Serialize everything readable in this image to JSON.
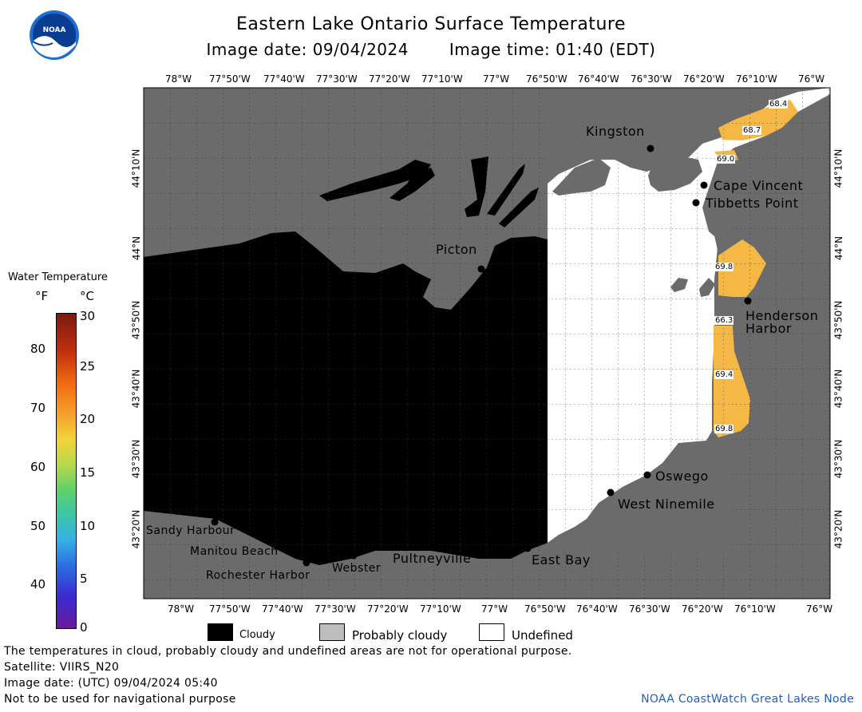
{
  "header": {
    "title": "Eastern Lake Ontario Surface Temperature",
    "image_date": "Image date: 09/04/2024",
    "image_time": "Image time: 01:40 (EDT)"
  },
  "logo": {
    "text": "NOAA"
  },
  "map": {
    "top_lon_labels": [
      "78°W",
      "77°50'W",
      "77°40'W",
      "77°30'W",
      "77°20'W",
      "77°10'W",
      "77°W",
      "76°50'W",
      "76°40'W",
      "76°30'W",
      "76°20'W",
      "76°10'W",
      "76°W"
    ],
    "bottom_lon_labels": [
      "78°W",
      "77°50'W",
      "77°40'W",
      "77°30'W",
      "77°20'W",
      "77°10'W",
      "77°W",
      "76°50'W",
      "76°40'W",
      "76°30'W",
      "76°20'W",
      "76°10'W",
      "76°W"
    ],
    "lat_labels": [
      "44°10'N",
      "44°N",
      "43°50'N",
      "43°40'N",
      "43°30'N",
      "43°20'N"
    ],
    "places": {
      "kingston": "Kingston",
      "cape_vincent": "Cape Vincent",
      "tibbetts_point": "Tibbetts Point",
      "picton": "Picton",
      "henderson_harbor_1": "Henderson",
      "henderson_harbor_2": "Harbor",
      "oswego": "Oswego",
      "west_ninemile": "West Ninemile",
      "east_bay": "East Bay",
      "pultneyville": "Pultneyville",
      "webster": "Webster",
      "rochester_harbor": "Rochester Harbor",
      "manitou_beach": "Manitou Beach",
      "sandy_harbour": "Sandy Harbour"
    },
    "temp_labels": [
      "68.4",
      "68.7",
      "69.0",
      "69.8",
      "66.3",
      "69.4",
      "69.8"
    ]
  },
  "scale": {
    "title": "Water Temperature",
    "unit_f": "°F",
    "unit_c": "°C",
    "f_ticks": [
      "80",
      "70",
      "60",
      "50",
      "40"
    ],
    "c_ticks": [
      "30",
      "25",
      "20",
      "15",
      "10",
      "5",
      "0"
    ]
  },
  "legend": {
    "cloudy": "Cloudy",
    "probably_cloudy": "Probably cloudy",
    "undefined": "Undefined"
  },
  "footer": {
    "disclaimer": "The temperatures in cloud, probably cloudy and undefined areas are not for operational purpose.",
    "satellite": "Satellite: VIIRS_N20",
    "utc_date": "Image date: (UTC) 09/04/2024  05:40",
    "navigation": "Not to be used for navigational purpose",
    "credit": "NOAA CoastWatch Great Lakes Node"
  },
  "colors": {
    "land": "#6b6b6b",
    "cloud": "#000000",
    "undefined": "#ffffff",
    "warm_water": "#f5b844",
    "credit_blue": "#1f5fbf"
  }
}
